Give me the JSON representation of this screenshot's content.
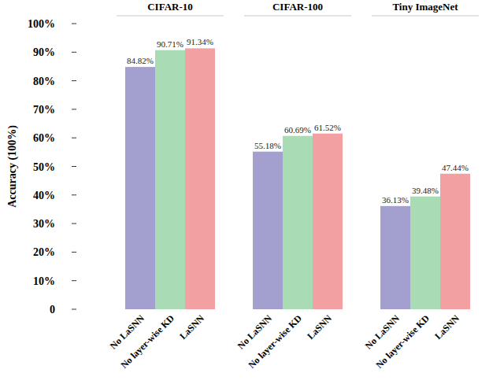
{
  "chart_data": {
    "type": "bar",
    "y_label": "Accuracy (100%)",
    "categories": [
      "CIFAR-10",
      "CIFAR-100",
      "Tiny ImageNet"
    ],
    "series": [
      {
        "name": "No LaSNN",
        "color": "#a39fce",
        "values": [
          84.82,
          55.18,
          36.13
        ],
        "value_labels": [
          "84.82%",
          "55.18%",
          "36.13%"
        ]
      },
      {
        "name": "No layer-wise KD",
        "color": "#a9dbb4",
        "values": [
          90.71,
          60.69,
          39.48
        ],
        "value_labels": [
          "90.71%",
          "60.69%",
          "39.48%"
        ]
      },
      {
        "name": "LaSNN",
        "color": "#f2a0a1",
        "values": [
          91.34,
          61.52,
          47.44
        ],
        "value_labels": [
          "91.34%",
          "61.52%",
          "47.44%"
        ]
      }
    ],
    "ylim": [
      0,
      100
    ],
    "yticks": [
      0,
      {
        "value": 10,
        "label": "10%"
      },
      {
        "value": 20,
        "label": "20%"
      },
      {
        "value": 30,
        "label": "30%"
      },
      {
        "value": 40,
        "label": "40%"
      },
      {
        "value": 50,
        "label": "50%"
      },
      {
        "value": 60,
        "label": "60%"
      },
      {
        "value": 70,
        "label": "70%"
      },
      {
        "value": 80,
        "label": "80%"
      },
      {
        "value": 90,
        "label": "90%"
      },
      {
        "value": 100,
        "label": "100%"
      }
    ],
    "data_labels": true,
    "grid": false
  }
}
